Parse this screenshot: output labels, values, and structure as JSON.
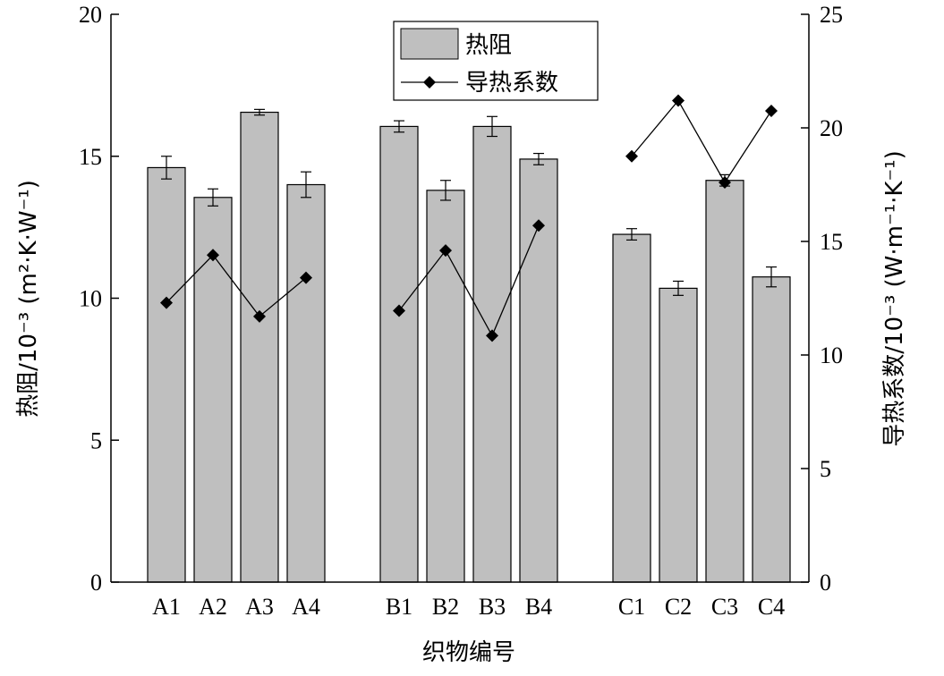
{
  "chart_data": {
    "type": "bar",
    "xlabel": "织物编号",
    "ylabel_left": "热阻/10⁻³ (m²·K·W⁻¹)",
    "ylabel_right": "导热系数/10⁻³ (W·m⁻¹·K⁻¹)",
    "ylim_left": [
      0,
      20
    ],
    "ylim_right": [
      0,
      25
    ],
    "yticks_left": [
      0,
      5,
      10,
      15,
      20
    ],
    "yticks_right": [
      0,
      5,
      10,
      15,
      20,
      25
    ],
    "grid": false,
    "legend_position": "top-center",
    "categories": [
      {
        "label": "A1",
        "group": "A"
      },
      {
        "label": "A2",
        "group": "A"
      },
      {
        "label": "A3",
        "group": "A"
      },
      {
        "label": "A4",
        "group": "A"
      },
      {
        "label": "B1",
        "group": "B"
      },
      {
        "label": "B2",
        "group": "B"
      },
      {
        "label": "B3",
        "group": "B"
      },
      {
        "label": "B4",
        "group": "B"
      },
      {
        "label": "C1",
        "group": "C"
      },
      {
        "label": "C2",
        "group": "C"
      },
      {
        "label": "C3",
        "group": "C"
      },
      {
        "label": "C4",
        "group": "C"
      }
    ],
    "series": [
      {
        "name": "热阻",
        "kind": "bar",
        "axis": "left",
        "color": "#bfbfbf",
        "values": [
          14.6,
          13.55,
          16.55,
          14.0,
          16.05,
          13.8,
          16.05,
          14.9,
          12.25,
          10.35,
          14.15,
          10.75
        ],
        "errors": [
          0.4,
          0.3,
          0.1,
          0.45,
          0.2,
          0.35,
          0.35,
          0.2,
          0.2,
          0.25,
          0.2,
          0.35
        ]
      },
      {
        "name": "导热系数",
        "kind": "line",
        "axis": "right",
        "color": "#000000",
        "marker": "diamond",
        "segments": [
          [
            0,
            1,
            2,
            3
          ],
          [
            4,
            5,
            6,
            7
          ],
          [
            8,
            9,
            10,
            11
          ]
        ],
        "values": [
          12.3,
          14.4,
          11.7,
          13.4,
          11.95,
          14.6,
          10.85,
          15.7,
          18.75,
          21.2,
          17.6,
          20.75
        ]
      }
    ]
  }
}
